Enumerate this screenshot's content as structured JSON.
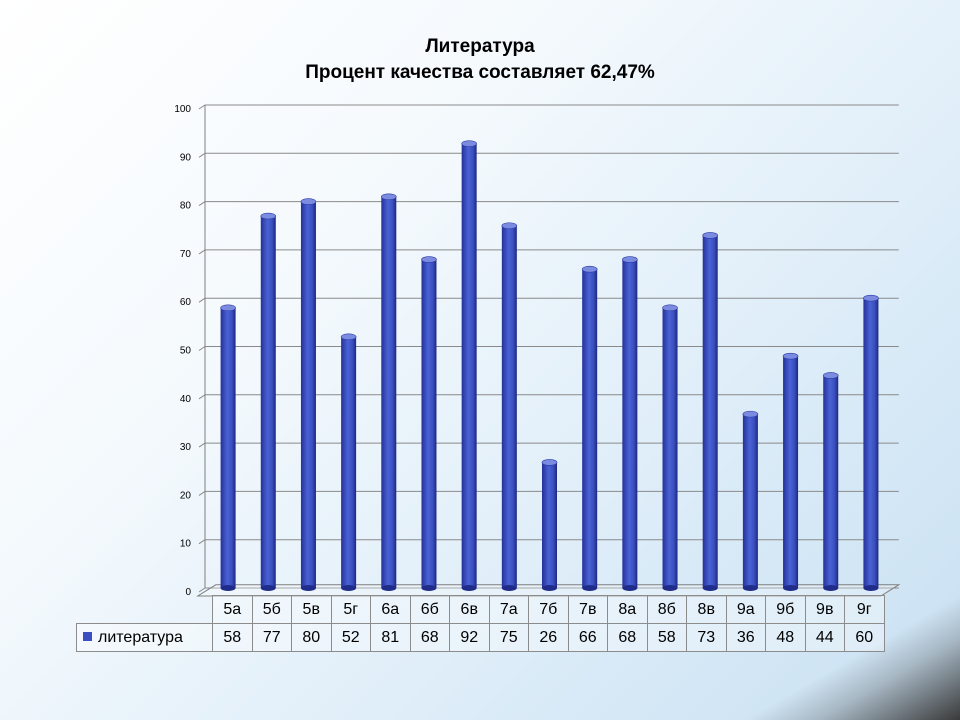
{
  "title_line1": "Литература",
  "title_line2": "Процент качества составляет 62,47%",
  "colors": {
    "bar": "#3a4fc0",
    "bar_dark": "#1f2c8a",
    "bar_light": "#7b8ce0",
    "grid": "#7f7f7f"
  },
  "chart_data": {
    "type": "bar",
    "title": "Литература\nПроцент качества составляет 62,47%",
    "categories": [
      "5а",
      "5б",
      "5в",
      "5г",
      "6а",
      "6б",
      "6в",
      "7а",
      "7б",
      "7в",
      "8а",
      "8б",
      "8в",
      "9а",
      "9б",
      "9в",
      "9г"
    ],
    "series": [
      {
        "name": "литература",
        "values": [
          58,
          77,
          80,
          52,
          81,
          68,
          92,
          75,
          26,
          66,
          68,
          58,
          73,
          36,
          48,
          44,
          60
        ]
      }
    ],
    "ylim": [
      0,
      100
    ],
    "yticks": [
      0,
      10,
      20,
      30,
      40,
      50,
      60,
      70,
      80,
      90,
      100
    ],
    "grid": true,
    "legend": "data-table-left",
    "three_d": true
  }
}
